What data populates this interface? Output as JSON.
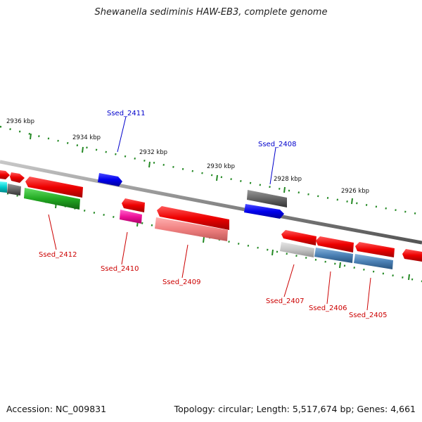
{
  "title": "Shewanella sediminis HAW-EB3, complete genome",
  "accession": "Accession: NC_009831",
  "topology": "Topology: circular; Length: 5,517,674 bp; Genes: 4,661",
  "ruler": [
    {
      "label": "2936 kbp"
    },
    {
      "label": "2934 kbp"
    },
    {
      "label": "2932 kbp"
    },
    {
      "label": "2930 kbp"
    },
    {
      "label": "2928 kbp"
    },
    {
      "label": "2926 kbp"
    }
  ],
  "genes": [
    {
      "name": "Ssed_2411",
      "color": "#0000cc"
    },
    {
      "name": "Ssed_2408",
      "color": "#0000cc"
    },
    {
      "name": "Ssed_2412",
      "color": "#cc0000"
    },
    {
      "name": "Ssed_2410",
      "color": "#cc0000"
    },
    {
      "name": "Ssed_2409",
      "color": "#cc0000"
    },
    {
      "name": "Ssed_2407",
      "color": "#cc0000"
    },
    {
      "name": "Ssed_2406",
      "color": "#cc0000"
    },
    {
      "name": "Ssed_2405",
      "color": "#cc0000"
    }
  ]
}
